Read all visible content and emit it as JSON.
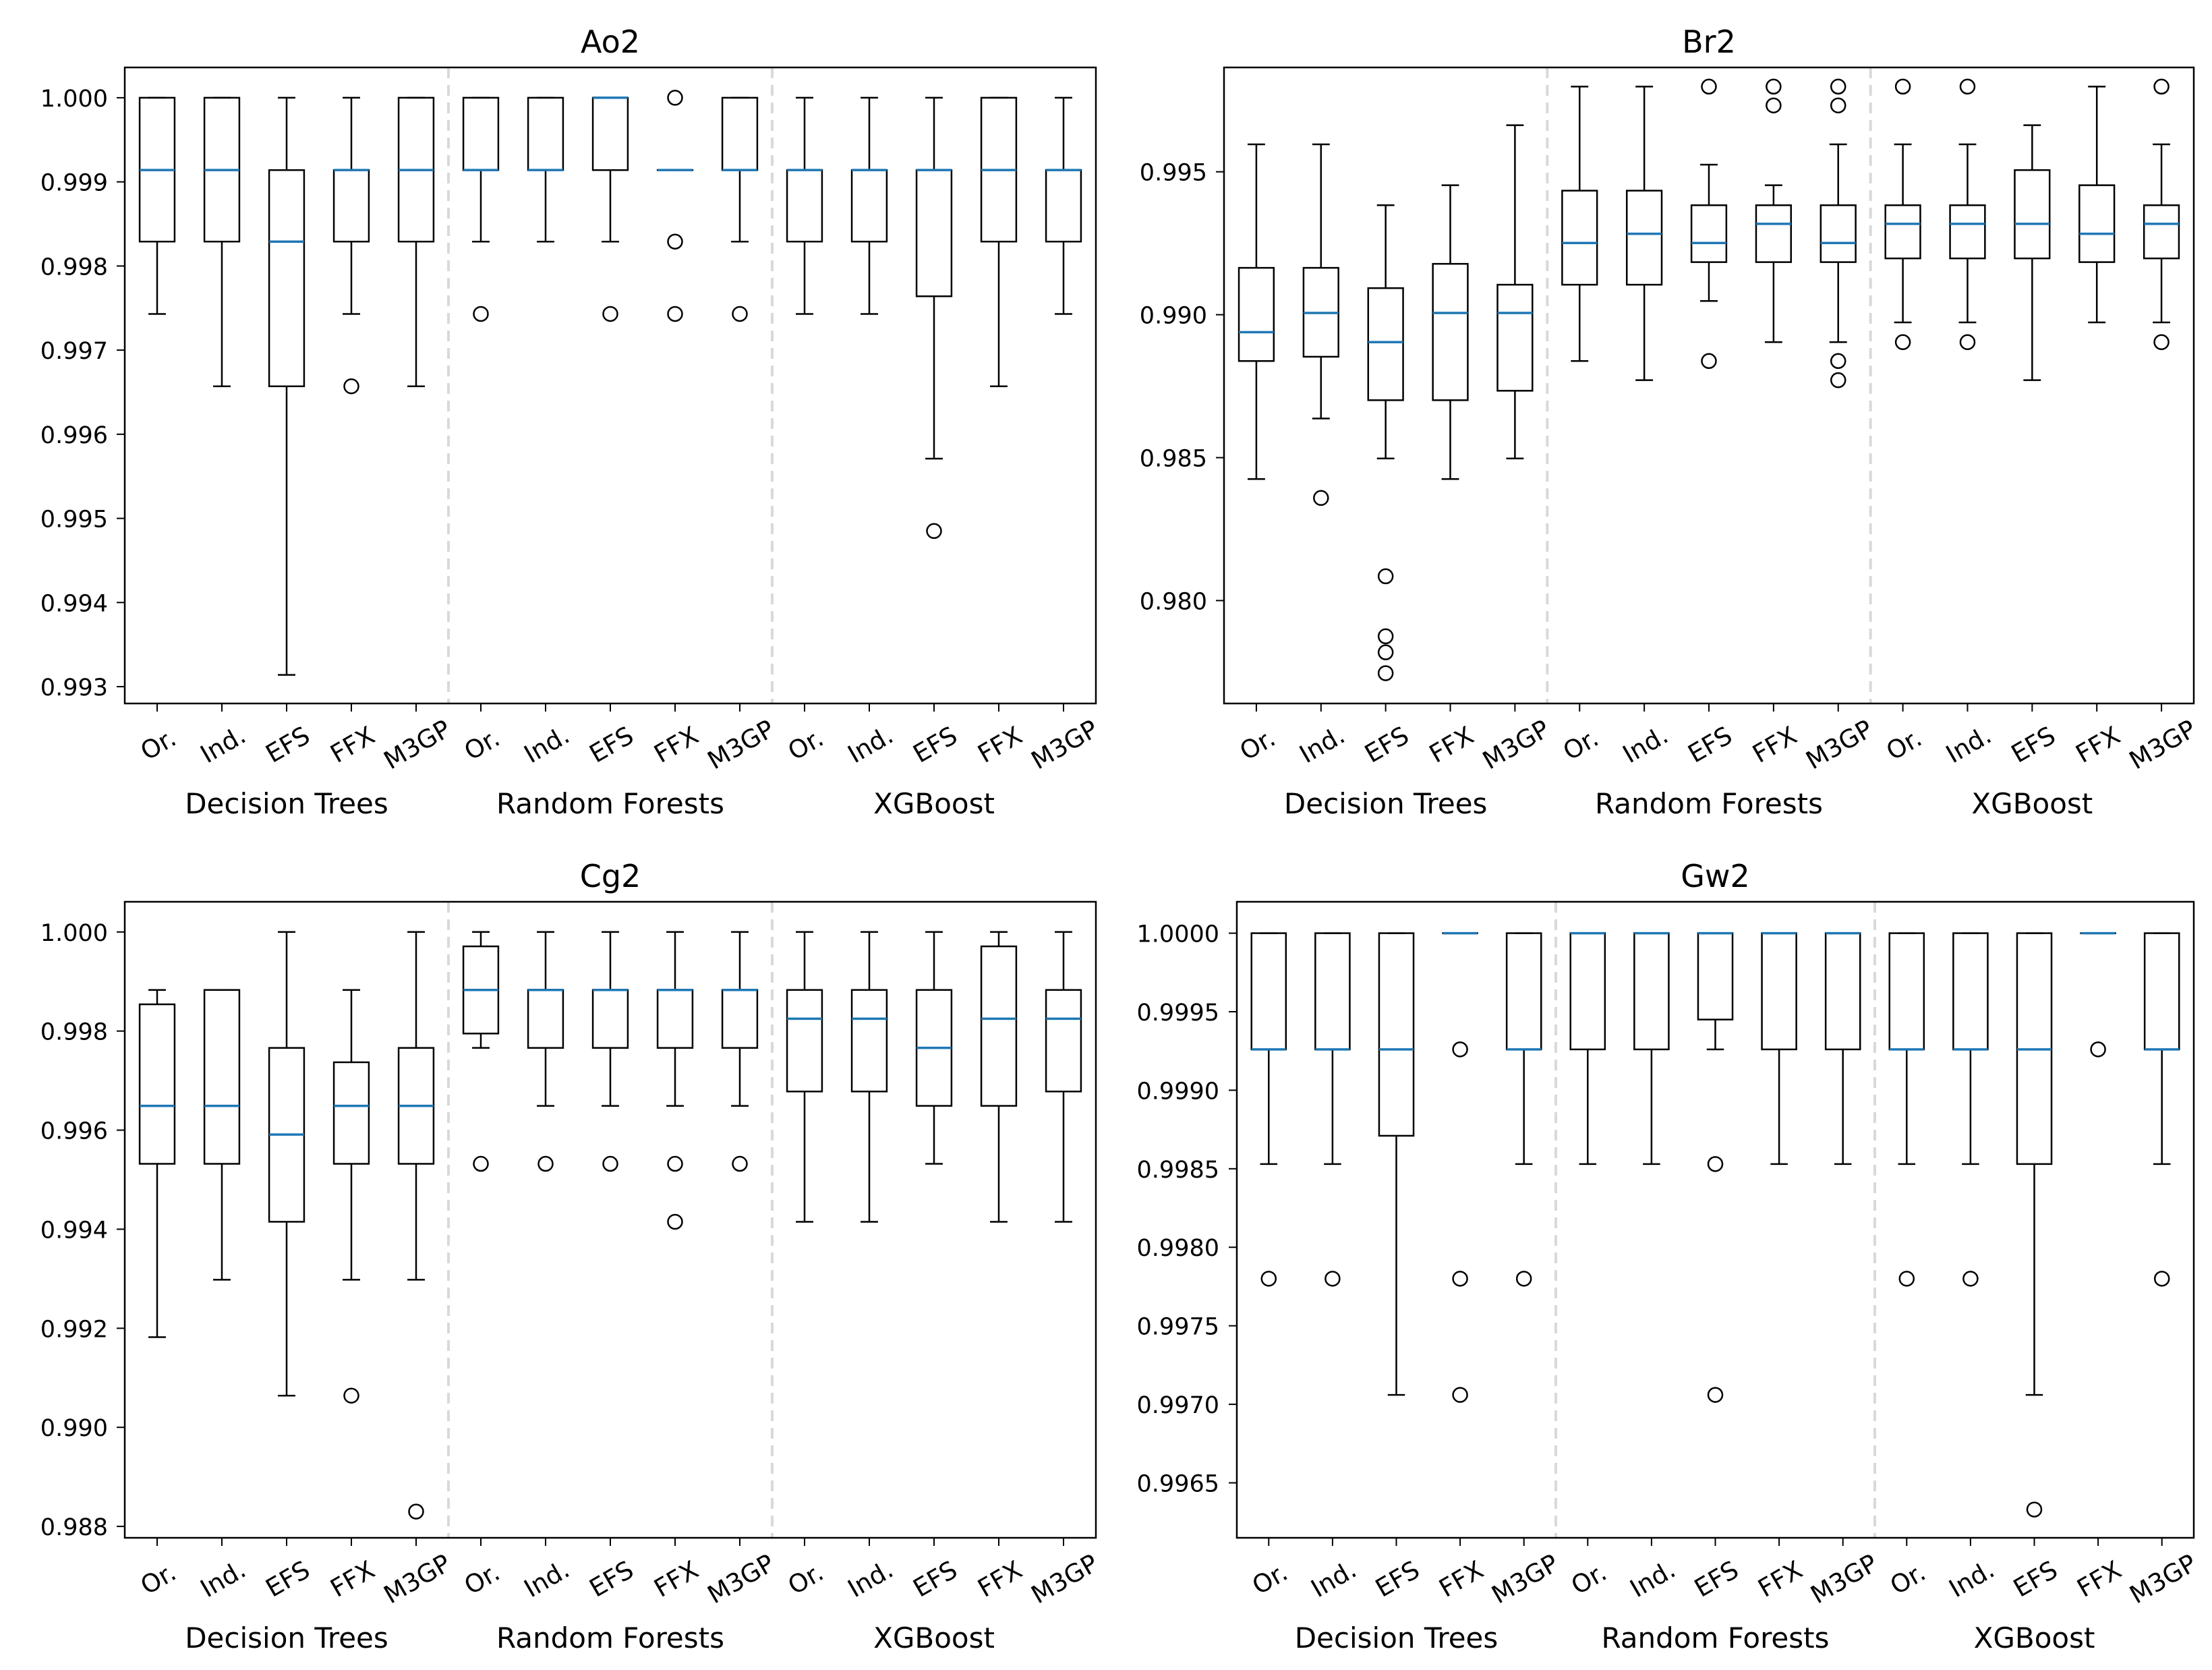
{
  "chart_data": [
    {
      "type": "box",
      "title": "Ao2",
      "ylim": [
        0.9928,
        1.00036
      ],
      "yticks": [
        0.993,
        0.994,
        0.995,
        0.996,
        0.997,
        0.998,
        0.999,
        1.0
      ],
      "ytick_labels": [
        "0.993",
        "0.994",
        "0.995",
        "0.996",
        "0.997",
        "0.998",
        "0.999",
        "1.000"
      ],
      "groups": [
        "Decision Trees",
        "Random Forests",
        "XGBoost"
      ],
      "categories": [
        "Or.",
        "Ind.",
        "EFS",
        "FFX",
        "M3GP"
      ],
      "boxes": [
        {
          "group": "Decision Trees",
          "label": "Or.",
          "whislo": 0.99743,
          "q1": 0.99829,
          "med": 0.99914,
          "q3": 1.0,
          "whishi": 1.0,
          "fliers": []
        },
        {
          "group": "Decision Trees",
          "label": "Ind.",
          "whislo": 0.99657,
          "q1": 0.99829,
          "med": 0.99914,
          "q3": 1.0,
          "whishi": 1.0,
          "fliers": []
        },
        {
          "group": "Decision Trees",
          "label": "EFS",
          "whislo": 0.99314,
          "q1": 0.99657,
          "med": 0.99829,
          "q3": 0.99914,
          "whishi": 1.0,
          "fliers": []
        },
        {
          "group": "Decision Trees",
          "label": "FFX",
          "whislo": 0.99743,
          "q1": 0.99829,
          "med": 0.99914,
          "q3": 0.99914,
          "whishi": 1.0,
          "fliers": [
            0.99657
          ]
        },
        {
          "group": "Decision Trees",
          "label": "M3GP",
          "whislo": 0.99657,
          "q1": 0.99829,
          "med": 0.99914,
          "q3": 1.0,
          "whishi": 1.0,
          "fliers": []
        },
        {
          "group": "Random Forests",
          "label": "Or.",
          "whislo": 0.99829,
          "q1": 0.99914,
          "med": 0.99914,
          "q3": 1.0,
          "whishi": 1.0,
          "fliers": [
            0.99743
          ]
        },
        {
          "group": "Random Forests",
          "label": "Ind.",
          "whislo": 0.99829,
          "q1": 0.99914,
          "med": 0.99914,
          "q3": 1.0,
          "whishi": 1.0,
          "fliers": []
        },
        {
          "group": "Random Forests",
          "label": "EFS",
          "whislo": 0.99829,
          "q1": 0.99914,
          "med": 1.0,
          "q3": 1.0,
          "whishi": 1.0,
          "fliers": [
            0.99743
          ]
        },
        {
          "group": "Random Forests",
          "label": "FFX",
          "whislo": 0.99914,
          "q1": 0.99914,
          "med": 0.99914,
          "q3": 0.99914,
          "whishi": 0.99914,
          "fliers": [
            1.0,
            0.99829,
            0.99743
          ]
        },
        {
          "group": "Random Forests",
          "label": "M3GP",
          "whislo": 0.99829,
          "q1": 0.99914,
          "med": 0.99914,
          "q3": 1.0,
          "whishi": 1.0,
          "fliers": [
            0.99743
          ]
        },
        {
          "group": "XGBoost",
          "label": "Or.",
          "whislo": 0.99743,
          "q1": 0.99829,
          "med": 0.99914,
          "q3": 0.99914,
          "whishi": 1.0,
          "fliers": []
        },
        {
          "group": "XGBoost",
          "label": "Ind.",
          "whislo": 0.99743,
          "q1": 0.99829,
          "med": 0.99914,
          "q3": 0.99914,
          "whishi": 1.0,
          "fliers": []
        },
        {
          "group": "XGBoost",
          "label": "EFS",
          "whislo": 0.99571,
          "q1": 0.99764,
          "med": 0.99914,
          "q3": 0.99914,
          "whishi": 1.0,
          "fliers": [
            0.99485
          ]
        },
        {
          "group": "XGBoost",
          "label": "FFX",
          "whislo": 0.99657,
          "q1": 0.99829,
          "med": 0.99914,
          "q3": 1.0,
          "whishi": 1.0,
          "fliers": []
        },
        {
          "group": "XGBoost",
          "label": "M3GP",
          "whislo": 0.99743,
          "q1": 0.99829,
          "med": 0.99914,
          "q3": 0.99914,
          "whishi": 1.0,
          "fliers": []
        }
      ]
    },
    {
      "type": "box",
      "title": "Br2",
      "ylim": [
        0.9764,
        0.99865
      ],
      "yticks": [
        0.98,
        0.985,
        0.99,
        0.995
      ],
      "ytick_labels": [
        "0.980",
        "0.985",
        "0.990",
        "0.995"
      ],
      "groups": [
        "Decision Trees",
        "Random Forests",
        "XGBoost"
      ],
      "categories": [
        "Or.",
        "Ind.",
        "EFS",
        "FFX",
        "M3GP"
      ],
      "boxes": [
        {
          "group": "Decision Trees",
          "label": "Or.",
          "whislo": 0.98425,
          "q1": 0.98838,
          "med": 0.98939,
          "q3": 0.99164,
          "whishi": 0.99596,
          "fliers": []
        },
        {
          "group": "Decision Trees",
          "label": "Ind.",
          "whislo": 0.98637,
          "q1": 0.98853,
          "med": 0.99006,
          "q3": 0.99164,
          "whishi": 0.99596,
          "fliers": [
            0.98359
          ]
        },
        {
          "group": "Decision Trees",
          "label": "EFS",
          "whislo": 0.98497,
          "q1": 0.98701,
          "med": 0.98904,
          "q3": 0.99093,
          "whishi": 0.99383,
          "fliers": [
            0.98085,
            0.97875,
            0.97819,
            0.97746
          ]
        },
        {
          "group": "Decision Trees",
          "label": "FFX",
          "whislo": 0.98425,
          "q1": 0.98701,
          "med": 0.99006,
          "q3": 0.99178,
          "whishi": 0.99453,
          "fliers": []
        },
        {
          "group": "Decision Trees",
          "label": "M3GP",
          "whislo": 0.98497,
          "q1": 0.98734,
          "med": 0.99006,
          "q3": 0.99105,
          "whishi": 0.99663,
          "fliers": []
        },
        {
          "group": "Random Forests",
          "label": "Or.",
          "whislo": 0.98838,
          "q1": 0.99105,
          "med": 0.99251,
          "q3": 0.99434,
          "whishi": 0.99798,
          "fliers": []
        },
        {
          "group": "Random Forests",
          "label": "Ind.",
          "whislo": 0.98771,
          "q1": 0.99105,
          "med": 0.99283,
          "q3": 0.99434,
          "whishi": 0.99798,
          "fliers": []
        },
        {
          "group": "Random Forests",
          "label": "EFS",
          "whislo": 0.99048,
          "q1": 0.99184,
          "med": 0.99251,
          "q3": 0.99383,
          "whishi": 0.99525,
          "fliers": [
            0.99798,
            0.98838
          ]
        },
        {
          "group": "Random Forests",
          "label": "FFX",
          "whislo": 0.98904,
          "q1": 0.99184,
          "med": 0.99318,
          "q3": 0.99383,
          "whishi": 0.99453,
          "fliers": [
            0.99798,
            0.99732
          ]
        },
        {
          "group": "Random Forests",
          "label": "M3GP",
          "whislo": 0.98904,
          "q1": 0.99184,
          "med": 0.99251,
          "q3": 0.99383,
          "whishi": 0.99596,
          "fliers": [
            0.99798,
            0.99732,
            0.98838,
            0.98771
          ]
        },
        {
          "group": "XGBoost",
          "label": "Or.",
          "whislo": 0.98973,
          "q1": 0.99197,
          "med": 0.99318,
          "q3": 0.99383,
          "whishi": 0.99596,
          "fliers": [
            0.99798,
            0.98904
          ]
        },
        {
          "group": "XGBoost",
          "label": "Ind.",
          "whislo": 0.98973,
          "q1": 0.99197,
          "med": 0.99318,
          "q3": 0.99383,
          "whishi": 0.99596,
          "fliers": [
            0.99798,
            0.98904
          ]
        },
        {
          "group": "XGBoost",
          "label": "EFS",
          "whislo": 0.98771,
          "q1": 0.99197,
          "med": 0.99318,
          "q3": 0.99506,
          "whishi": 0.99663,
          "fliers": []
        },
        {
          "group": "XGBoost",
          "label": "FFX",
          "whislo": 0.98973,
          "q1": 0.99184,
          "med": 0.99283,
          "q3": 0.99453,
          "whishi": 0.99798,
          "fliers": []
        },
        {
          "group": "XGBoost",
          "label": "M3GP",
          "whislo": 0.98973,
          "q1": 0.99197,
          "med": 0.99318,
          "q3": 0.99383,
          "whishi": 0.99596,
          "fliers": [
            0.99798,
            0.98904
          ]
        }
      ]
    },
    {
      "type": "box",
      "title": "Cg2",
      "ylim": [
        0.98777,
        1.00061
      ],
      "yticks": [
        0.988,
        0.99,
        0.992,
        0.994,
        0.996,
        0.998,
        1.0
      ],
      "ytick_labels": [
        "0.988",
        "0.990",
        "0.992",
        "0.994",
        "0.996",
        "0.998",
        "1.000"
      ],
      "groups": [
        "Decision Trees",
        "Random Forests",
        "XGBoost"
      ],
      "categories": [
        "Or.",
        "Ind.",
        "EFS",
        "FFX",
        "M3GP"
      ],
      "boxes": [
        {
          "group": "Decision Trees",
          "label": "Or.",
          "whislo": 0.99182,
          "q1": 0.99532,
          "med": 0.99649,
          "q3": 0.99854,
          "whishi": 0.99883,
          "fliers": []
        },
        {
          "group": "Decision Trees",
          "label": "Ind.",
          "whislo": 0.99298,
          "q1": 0.99532,
          "med": 0.99649,
          "q3": 0.99883,
          "whishi": 0.99883,
          "fliers": []
        },
        {
          "group": "Decision Trees",
          "label": "EFS",
          "whislo": 0.99064,
          "q1": 0.99415,
          "med": 0.99591,
          "q3": 0.99766,
          "whishi": 1.0,
          "fliers": []
        },
        {
          "group": "Decision Trees",
          "label": "FFX",
          "whislo": 0.99298,
          "q1": 0.99532,
          "med": 0.99649,
          "q3": 0.99737,
          "whishi": 0.99883,
          "fliers": [
            0.99064
          ]
        },
        {
          "group": "Decision Trees",
          "label": "M3GP",
          "whislo": 0.99298,
          "q1": 0.99532,
          "med": 0.99649,
          "q3": 0.99766,
          "whishi": 1.0,
          "fliers": [
            0.9883
          ]
        },
        {
          "group": "Random Forests",
          "label": "Or.",
          "whislo": 0.99766,
          "q1": 0.99795,
          "med": 0.99883,
          "q3": 0.99971,
          "whishi": 1.0,
          "fliers": [
            0.99532
          ]
        },
        {
          "group": "Random Forests",
          "label": "Ind.",
          "whislo": 0.99649,
          "q1": 0.99766,
          "med": 0.99883,
          "q3": 0.99883,
          "whishi": 1.0,
          "fliers": [
            0.99532
          ]
        },
        {
          "group": "Random Forests",
          "label": "EFS",
          "whislo": 0.99649,
          "q1": 0.99766,
          "med": 0.99883,
          "q3": 0.99883,
          "whishi": 1.0,
          "fliers": [
            0.99532
          ]
        },
        {
          "group": "Random Forests",
          "label": "FFX",
          "whislo": 0.99649,
          "q1": 0.99766,
          "med": 0.99883,
          "q3": 0.99883,
          "whishi": 1.0,
          "fliers": [
            0.99532,
            0.99415
          ]
        },
        {
          "group": "Random Forests",
          "label": "M3GP",
          "whislo": 0.99649,
          "q1": 0.99766,
          "med": 0.99883,
          "q3": 0.99883,
          "whishi": 1.0,
          "fliers": [
            0.99532
          ]
        },
        {
          "group": "XGBoost",
          "label": "Or.",
          "whislo": 0.99415,
          "q1": 0.99678,
          "med": 0.99825,
          "q3": 0.99883,
          "whishi": 1.0,
          "fliers": []
        },
        {
          "group": "XGBoost",
          "label": "Ind.",
          "whislo": 0.99415,
          "q1": 0.99678,
          "med": 0.99825,
          "q3": 0.99883,
          "whishi": 1.0,
          "fliers": []
        },
        {
          "group": "XGBoost",
          "label": "EFS",
          "whislo": 0.99532,
          "q1": 0.99649,
          "med": 0.99766,
          "q3": 0.99883,
          "whishi": 1.0,
          "fliers": []
        },
        {
          "group": "XGBoost",
          "label": "FFX",
          "whislo": 0.99415,
          "q1": 0.99649,
          "med": 0.99825,
          "q3": 0.99971,
          "whishi": 1.0,
          "fliers": []
        },
        {
          "group": "XGBoost",
          "label": "M3GP",
          "whislo": 0.99415,
          "q1": 0.99678,
          "med": 0.99825,
          "q3": 0.99883,
          "whishi": 1.0,
          "fliers": []
        }
      ]
    },
    {
      "type": "box",
      "title": "Gw2",
      "ylim": [
        0.99615,
        1.0002
      ],
      "yticks": [
        0.9965,
        0.997,
        0.9975,
        0.998,
        0.9985,
        0.999,
        0.9995,
        1.0
      ],
      "ytick_labels": [
        "0.9965",
        "0.9970",
        "0.9975",
        "0.9980",
        "0.9985",
        "0.9990",
        "0.9995",
        "1.0000"
      ],
      "groups": [
        "Decision Trees",
        "Random Forests",
        "XGBoost"
      ],
      "categories": [
        "Or.",
        "Ind.",
        "EFS",
        "FFX",
        "M3GP"
      ],
      "boxes": [
        {
          "group": "Decision Trees",
          "label": "Or.",
          "whislo": 0.99853,
          "q1": 0.99926,
          "med": 0.99926,
          "q3": 1.0,
          "whishi": 1.0,
          "fliers": [
            0.9978
          ]
        },
        {
          "group": "Decision Trees",
          "label": "Ind.",
          "whislo": 0.99853,
          "q1": 0.99926,
          "med": 0.99926,
          "q3": 1.0,
          "whishi": 1.0,
          "fliers": [
            0.9978
          ]
        },
        {
          "group": "Decision Trees",
          "label": "EFS",
          "whislo": 0.99706,
          "q1": 0.99871,
          "med": 0.99926,
          "q3": 1.0,
          "whishi": 1.0,
          "fliers": []
        },
        {
          "group": "Decision Trees",
          "label": "FFX",
          "whislo": 1.0,
          "q1": 1.0,
          "med": 1.0,
          "q3": 1.0,
          "whishi": 1.0,
          "fliers": [
            0.99926,
            0.9978,
            0.99706
          ]
        },
        {
          "group": "Decision Trees",
          "label": "M3GP",
          "whislo": 0.99853,
          "q1": 0.99926,
          "med": 0.99926,
          "q3": 1.0,
          "whishi": 1.0,
          "fliers": [
            0.9978
          ]
        },
        {
          "group": "Random Forests",
          "label": "Or.",
          "whislo": 0.99853,
          "q1": 0.99926,
          "med": 1.0,
          "q3": 1.0,
          "whishi": 1.0,
          "fliers": []
        },
        {
          "group": "Random Forests",
          "label": "Ind.",
          "whislo": 0.99853,
          "q1": 0.99926,
          "med": 1.0,
          "q3": 1.0,
          "whishi": 1.0,
          "fliers": []
        },
        {
          "group": "Random Forests",
          "label": "EFS",
          "whislo": 0.99926,
          "q1": 0.99945,
          "med": 1.0,
          "q3": 1.0,
          "whishi": 1.0,
          "fliers": [
            0.99853,
            0.99706
          ]
        },
        {
          "group": "Random Forests",
          "label": "FFX",
          "whislo": 0.99853,
          "q1": 0.99926,
          "med": 1.0,
          "q3": 1.0,
          "whishi": 1.0,
          "fliers": []
        },
        {
          "group": "Random Forests",
          "label": "M3GP",
          "whislo": 0.99853,
          "q1": 0.99926,
          "med": 1.0,
          "q3": 1.0,
          "whishi": 1.0,
          "fliers": []
        },
        {
          "group": "XGBoost",
          "label": "Or.",
          "whislo": 0.99853,
          "q1": 0.99926,
          "med": 0.99926,
          "q3": 1.0,
          "whishi": 1.0,
          "fliers": [
            0.9978
          ]
        },
        {
          "group": "XGBoost",
          "label": "Ind.",
          "whislo": 0.99853,
          "q1": 0.99926,
          "med": 0.99926,
          "q3": 1.0,
          "whishi": 1.0,
          "fliers": [
            0.9978
          ]
        },
        {
          "group": "XGBoost",
          "label": "EFS",
          "whislo": 0.99706,
          "q1": 0.99853,
          "med": 0.99926,
          "q3": 1.0,
          "whishi": 1.0,
          "fliers": [
            0.99633
          ]
        },
        {
          "group": "XGBoost",
          "label": "FFX",
          "whislo": 1.0,
          "q1": 1.0,
          "med": 1.0,
          "q3": 1.0,
          "whishi": 1.0,
          "fliers": [
            0.99926
          ]
        },
        {
          "group": "XGBoost",
          "label": "M3GP",
          "whislo": 0.99853,
          "q1": 0.99926,
          "med": 0.99926,
          "q3": 1.0,
          "whishi": 1.0,
          "fliers": [
            0.9978
          ]
        }
      ]
    }
  ],
  "colors": {
    "median": "#1f77b4",
    "box": "#000000",
    "separator": "#d9d9d9",
    "background": "#ffffff"
  }
}
